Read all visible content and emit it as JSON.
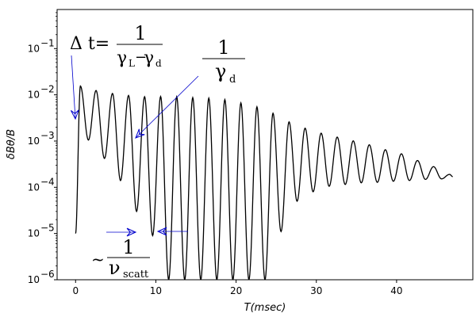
{
  "chart_data": {
    "type": "line",
    "title": "",
    "xlabel": "T(msec)",
    "ylabel": "δBθ/B",
    "xlim": [
      -2.3,
      49.5
    ],
    "ylim": [
      1e-06,
      0.7
    ],
    "yscale": "log",
    "grid": false,
    "line_color": "#000000",
    "annotation_color": "#0000cc",
    "x_ticks": [
      {
        "value": 0,
        "label": "0"
      },
      {
        "value": 10,
        "label": "10"
      },
      {
        "value": 20,
        "label": "20"
      },
      {
        "value": 30,
        "label": "30"
      },
      {
        "value": 40,
        "label": "40"
      }
    ],
    "y_ticks": [
      {
        "value": 1e-06,
        "base": "10",
        "exp": "−6"
      },
      {
        "value": 1e-05,
        "base": "10",
        "exp": "−5"
      },
      {
        "value": 0.0001,
        "base": "10",
        "exp": "−4"
      },
      {
        "value": 0.001,
        "base": "10",
        "exp": "−3"
      },
      {
        "value": 0.01,
        "base": "10",
        "exp": "−2"
      },
      {
        "value": 0.1,
        "base": "10",
        "exp": "−1"
      }
    ],
    "series": [
      {
        "start": {
          "x": 0.0,
          "y": 1e-05
        },
        "peaks": [
          [
            0.6,
            0.0155
          ],
          [
            2.55,
            0.0124
          ],
          [
            4.6,
            0.0107
          ],
          [
            6.6,
            0.0097
          ],
          [
            8.6,
            0.0091
          ],
          [
            10.6,
            0.0092
          ],
          [
            12.6,
            0.0091
          ],
          [
            14.6,
            0.0087
          ],
          [
            16.6,
            0.0085
          ],
          [
            18.6,
            0.0079
          ],
          [
            20.6,
            0.0067
          ],
          [
            22.6,
            0.0055
          ],
          [
            24.6,
            0.004
          ],
          [
            26.6,
            0.0026
          ],
          [
            28.6,
            0.0019
          ],
          [
            30.6,
            0.00148
          ],
          [
            32.6,
            0.00122
          ],
          [
            34.6,
            0.00101
          ],
          [
            36.6,
            0.00083
          ],
          [
            38.6,
            0.00065
          ],
          [
            40.6,
            0.00053
          ],
          [
            42.6,
            0.00038
          ],
          [
            44.6,
            0.00028
          ],
          [
            46.6,
            0.00019
          ]
        ],
        "troughs": [
          [
            1.6,
            0.00105
          ],
          [
            3.6,
            0.00042
          ],
          [
            5.6,
            0.00014
          ],
          [
            7.6,
            3e-05
          ],
          [
            9.6,
            9e-06
          ],
          [
            11.6,
            1e-06
          ],
          [
            13.6,
            1e-06
          ],
          [
            15.6,
            1e-06
          ],
          [
            17.6,
            1e-06
          ],
          [
            19.6,
            1e-06
          ],
          [
            21.6,
            1e-06
          ],
          [
            23.6,
            1e-06
          ],
          [
            25.6,
            1.1e-05
          ],
          [
            27.6,
            5e-05
          ],
          [
            29.6,
            8e-05
          ],
          [
            31.6,
            0.000105
          ],
          [
            33.6,
            0.000115
          ],
          [
            35.6,
            0.000125
          ],
          [
            37.6,
            0.000128
          ],
          [
            39.6,
            0.000135
          ],
          [
            41.6,
            0.00014
          ],
          [
            43.6,
            0.000148
          ],
          [
            45.6,
            0.000152
          ]
        ],
        "end": {
          "x": 47.0,
          "y": 0.00017
        }
      }
    ],
    "annotations": {
      "delta_t": {
        "lhs": "Δ  t=",
        "numerator": "1",
        "den_a": "γ",
        "den_a_sub": "L",
        "minus": "−",
        "den_b": "γ",
        "den_b_sub": "d"
      },
      "gamma_d": {
        "numerator": "1",
        "den": "γ",
        "den_sub": "d"
      },
      "nu_scatt": {
        "prefix": "~",
        "numerator": "1",
        "den": "ν",
        "den_sub": "scatt"
      }
    }
  }
}
